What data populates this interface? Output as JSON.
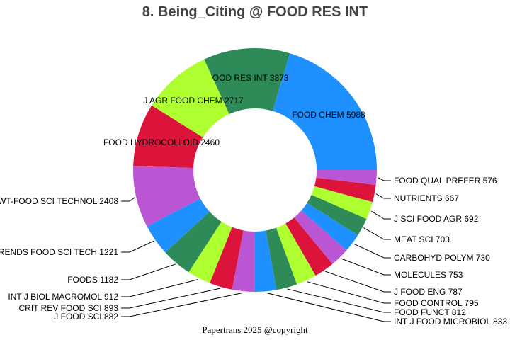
{
  "chart_data": {
    "type": "pie",
    "hole": true,
    "title": "8. Being_Citing @ FOOD RES INT",
    "direction": "counterclockwise",
    "sort": "descending",
    "colors": [
      "#1e90ff",
      "#2e8b57",
      "#adff2f",
      "#dc143c",
      "#ba55d3"
    ],
    "slices": [
      {
        "label": "FOOD CHEM",
        "value": 5988
      },
      {
        "label": "FOOD RES INT",
        "value": 3373
      },
      {
        "label": "J AGR FOOD CHEM",
        "value": 2717
      },
      {
        "label": "FOOD HYDROCOLLOID",
        "value": 2460
      },
      {
        "label": "LWT-FOOD SCI TECHNOL",
        "value": 2408
      },
      {
        "label": "TRENDS FOOD SCI TECH",
        "value": 1221
      },
      {
        "label": "FOODS",
        "value": 1182
      },
      {
        "label": "INT J BIOL MACROMOL",
        "value": 912
      },
      {
        "label": "CRIT REV FOOD SCI",
        "value": 893
      },
      {
        "label": "J FOOD SCI",
        "value": 882
      },
      {
        "label": "INT J FOOD MICROBIOL",
        "value": 833
      },
      {
        "label": "FOOD FUNCT",
        "value": 812
      },
      {
        "label": "FOOD CONTROL",
        "value": 795
      },
      {
        "label": "J FOOD ENG",
        "value": 787
      },
      {
        "label": "MOLECULES",
        "value": 753
      },
      {
        "label": "CARBOHYD POLYM",
        "value": 730
      },
      {
        "label": "MEAT SCI",
        "value": 703
      },
      {
        "label": "J SCI FOOD AGR",
        "value": 692
      },
      {
        "label": "NUTRIENTS",
        "value": 667
      },
      {
        "label": "FOOD QUAL PREFER",
        "value": 576
      }
    ]
  },
  "footer": "Papertrans 2025 @copyright"
}
